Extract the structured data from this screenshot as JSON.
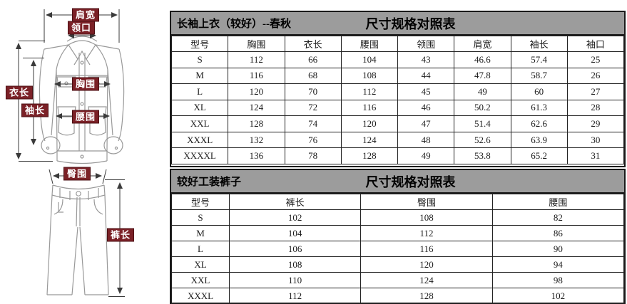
{
  "diagram": {
    "jacket_labels": {
      "shoulder_width": "肩宽",
      "collar": "领口",
      "garment_length": "衣长",
      "sleeve_length": "袖长",
      "chest": "胸围",
      "waist": "腰围"
    },
    "pants_labels": {
      "hip": "臀围",
      "pants_length": "裤长"
    },
    "label_bg_color": "#7b2127",
    "art_line_color": "#999999",
    "arrow_color": "#3a3a3a"
  },
  "jacket_table": {
    "caption_left": "长袖上衣（较好）--春秋",
    "title": "尺寸规格对照表",
    "columns": [
      "型号",
      "胸围",
      "衣长",
      "腰围",
      "领围",
      "肩宽",
      "袖长",
      "袖口"
    ],
    "rows": [
      [
        "S",
        "112",
        "66",
        "104",
        "43",
        "46.6",
        "57.4",
        "25"
      ],
      [
        "M",
        "116",
        "68",
        "108",
        "44",
        "47.8",
        "58.7",
        "26"
      ],
      [
        "L",
        "120",
        "70",
        "112",
        "45",
        "49",
        "60",
        "27"
      ],
      [
        "XL",
        "124",
        "72",
        "116",
        "46",
        "50.2",
        "61.3",
        "28"
      ],
      [
        "XXL",
        "128",
        "74",
        "120",
        "47",
        "51.4",
        "62.6",
        "29"
      ],
      [
        "XXXL",
        "132",
        "76",
        "124",
        "48",
        "52.6",
        "63.9",
        "30"
      ],
      [
        "XXXXL",
        "136",
        "78",
        "128",
        "49",
        "53.8",
        "65.2",
        "31"
      ]
    ]
  },
  "pants_table": {
    "caption_left": "较好工装裤子",
    "title": "尺寸规格对照表",
    "columns": [
      "型号",
      "裤长",
      "臀围",
      "腰围"
    ],
    "rows": [
      [
        "S",
        "102",
        "108",
        "82"
      ],
      [
        "M",
        "104",
        "112",
        "86"
      ],
      [
        "L",
        "106",
        "116",
        "90"
      ],
      [
        "XL",
        "108",
        "120",
        "94"
      ],
      [
        "XXL",
        "110",
        "124",
        "98"
      ],
      [
        "XXXL",
        "112",
        "128",
        "102"
      ]
    ]
  },
  "colors": {
    "header_bar": "#9c9c9c",
    "table_border": "#1a1a1a"
  }
}
